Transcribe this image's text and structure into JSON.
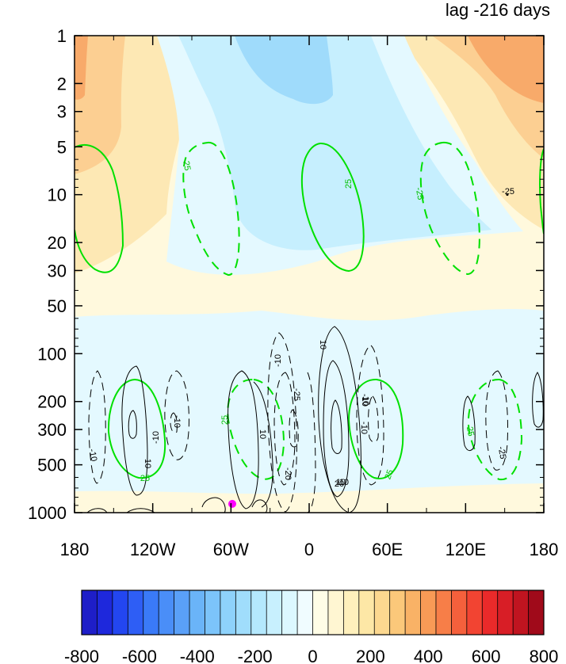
{
  "chart_data": {
    "type": "heatmap",
    "title": "lag -216 days",
    "x_axis": {
      "range": [
        -180,
        180
      ],
      "ticks": [
        -180,
        -120,
        -60,
        0,
        60,
        120,
        180
      ],
      "tick_labels": [
        "180",
        "120W",
        "60W",
        "0",
        "60E",
        "120E",
        "180"
      ]
    },
    "y_axis": {
      "scale": "log",
      "reversed": true,
      "range": [
        1,
        1000
      ],
      "ticks": [
        1,
        2,
        3,
        5,
        10,
        20,
        30,
        50,
        100,
        200,
        300,
        500,
        1000
      ],
      "tick_labels": [
        "1",
        "2",
        "3",
        "5",
        "10",
        "20",
        "30",
        "50",
        "100",
        "200",
        "300",
        "500",
        "1000"
      ]
    },
    "colorbar": {
      "levels": [
        -800,
        -750,
        -700,
        -650,
        -600,
        -550,
        -500,
        -450,
        -400,
        -350,
        -300,
        -250,
        -200,
        -150,
        -100,
        -50,
        0,
        50,
        100,
        150,
        200,
        250,
        300,
        350,
        400,
        450,
        500,
        550,
        600,
        650,
        700,
        750,
        800
      ],
      "label_values": [
        -800,
        -600,
        -400,
        -200,
        0,
        200,
        400,
        600,
        800
      ],
      "tick_labels": [
        "-800",
        "-600",
        "-400",
        "-200",
        "0",
        "200",
        "400",
        "600",
        "800"
      ],
      "colors": [
        "#1e1ec8",
        "#1e28dc",
        "#2346f0",
        "#2e5ef5",
        "#3a7af8",
        "#4a8ef8",
        "#5aa0f8",
        "#6ab4f8",
        "#7cc4fa",
        "#8ed2fb",
        "#a0ddfc",
        "#b4e8fd",
        "#c8f0fe",
        "#dcf8ff",
        "#f0fcff",
        "#fffde6",
        "#fff6d2",
        "#fff0bc",
        "#fde7a6",
        "#fcd890",
        "#fbc87a",
        "#f9b266",
        "#f89a56",
        "#f77e48",
        "#f5603c",
        "#f24432",
        "#ea2a2a",
        "#d81e26",
        "#c01420",
        "#a00a1a"
      ]
    },
    "shading_regions": [
      {
        "sign": "positive",
        "value_range": [
          0,
          50
        ],
        "description_lon": [
          -180,
          180
        ],
        "description_p": [
          30,
          1000
        ]
      },
      {
        "sign": "positive",
        "value_range": [
          50,
          100
        ],
        "lon_range": [
          -180,
          -130
        ],
        "p_range": [
          1,
          30
        ]
      },
      {
        "sign": "positive",
        "value_range": [
          100,
          200
        ],
        "lon_range": [
          -180,
          -150
        ],
        "p_range": [
          1,
          10
        ]
      },
      {
        "sign": "positive",
        "value_range": [
          200,
          300
        ],
        "lon_range": [
          -180,
          -170
        ],
        "p_range": [
          1,
          2.5
        ]
      },
      {
        "sign": "positive",
        "value_range": [
          50,
          100
        ],
        "lon_range": [
          95,
          180
        ],
        "p_range": [
          1,
          15
        ]
      },
      {
        "sign": "positive",
        "value_range": [
          100,
          200
        ],
        "lon_range": [
          120,
          180
        ],
        "p_range": [
          1,
          5
        ]
      },
      {
        "sign": "positive",
        "value_range": [
          200,
          300
        ],
        "lon_range": [
          140,
          180
        ],
        "p_range": [
          1,
          2.3
        ]
      },
      {
        "sign": "negative",
        "value_range": [
          -50,
          0
        ],
        "lon_range": [
          -90,
          70
        ],
        "p_range": [
          1,
          30
        ]
      },
      {
        "sign": "negative",
        "value_range": [
          -100,
          -50
        ],
        "lon_range": [
          -50,
          40
        ],
        "p_range": [
          1,
          20
        ]
      },
      {
        "sign": "negative",
        "value_range": [
          -200,
          -100
        ],
        "lon_range": [
          -30,
          20
        ],
        "p_range": [
          1,
          3
        ]
      },
      {
        "sign": "negative",
        "value_range": [
          -50,
          0
        ],
        "lon_range": [
          -180,
          180
        ],
        "p_range": [
          70,
          1000
        ]
      }
    ],
    "green_contours": [
      {
        "value": 25,
        "lon_range": [
          -173,
          -150
        ],
        "p_range": [
          5,
          30
        ]
      },
      {
        "value": -25,
        "lon_range": [
          -108,
          -88
        ],
        "p_range": [
          5,
          30
        ]
      },
      {
        "value": 25,
        "lon_range": [
          -5,
          17
        ],
        "p_range": [
          5,
          30
        ]
      },
      {
        "value": -25,
        "lon_range": [
          42,
          62
        ],
        "p_range": [
          5,
          30
        ]
      },
      {
        "value": 25,
        "lon_range": [
          175,
          180
        ],
        "p_range": [
          5,
          20
        ]
      },
      {
        "value": 25,
        "lon_range": [
          -140,
          -118
        ],
        "p_range": [
          150,
          550
        ]
      },
      {
        "value": -25,
        "lon_range": [
          -65,
          -45
        ],
        "p_range": [
          150,
          550
        ]
      },
      {
        "value": 25,
        "lon_range": [
          45,
          70
        ],
        "p_range": [
          150,
          550
        ]
      },
      {
        "value": -25,
        "lon_range": [
          123,
          147
        ],
        "p_range": [
          150,
          550
        ]
      }
    ],
    "black_contours": [
      {
        "value": -10,
        "lon_range": [
          -163,
          -156
        ],
        "p_range": [
          150,
          600
        ]
      },
      {
        "value": 10,
        "lon_range": [
          -134,
          -123
        ],
        "p_range": [
          100,
          800
        ]
      },
      {
        "value": -10,
        "lon_range": [
          -115,
          -100
        ],
        "p_range": [
          150,
          500
        ]
      },
      {
        "value": 10,
        "lon_range": [
          -61,
          -50
        ],
        "p_range": [
          130,
          900
        ]
      },
      {
        "value": -20,
        "lon_range": [
          -22,
          -10
        ],
        "p_range": [
          80,
          900
        ]
      },
      {
        "value": 10,
        "lon_range": [
          2,
          25
        ],
        "p_range": [
          80,
          950
        ]
      },
      {
        "value": 20,
        "lon_range": [
          5,
          15
        ],
        "p_range": [
          200,
          600
        ]
      },
      {
        "value": -10,
        "lon_range": [
          45,
          60
        ],
        "p_range": [
          100,
          600
        ]
      },
      {
        "value": 10,
        "lon_range": [
          127,
          136
        ],
        "p_range": [
          200,
          500
        ]
      },
      {
        "value": -10,
        "lon_range": [
          140,
          148
        ],
        "p_range": [
          130,
          550
        ]
      },
      {
        "value": 10,
        "lon_range": [
          165,
          172
        ],
        "p_range": [
          150,
          300
        ]
      }
    ],
    "contour_labels": [
      "-25",
      "-25",
      "25",
      "-25",
      "-10",
      "10",
      "-10",
      "-10",
      "-10",
      "10",
      "25",
      "-25",
      "25",
      "10",
      "-20",
      "10",
      "20",
      "-10",
      "25",
      "25",
      "-25",
      "-10",
      "10",
      "-10",
      "-10",
      "20",
      "-20",
      "10"
    ],
    "marker": {
      "lon": -59,
      "p": 880,
      "color": "#ff00ff"
    },
    "small_dot": {
      "lon": 152,
      "p": 10,
      "color": "#000000"
    }
  }
}
